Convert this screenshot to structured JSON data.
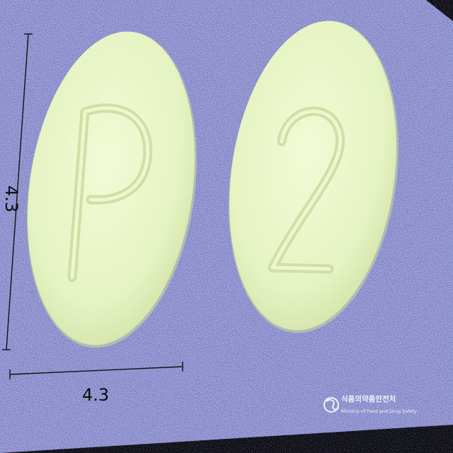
{
  "measurements": {
    "height_label": "4.3",
    "width_label": "4.3"
  },
  "pills": [
    {
      "imprint": "P"
    },
    {
      "imprint": "2"
    }
  ],
  "watermark": {
    "korean": "식품의약품안전처",
    "english": "Ministry of Food and Drug Safety"
  },
  "colors": {
    "background": "#a4a9ec",
    "pill": "#e9f6c9",
    "edge_black": "#000000"
  }
}
